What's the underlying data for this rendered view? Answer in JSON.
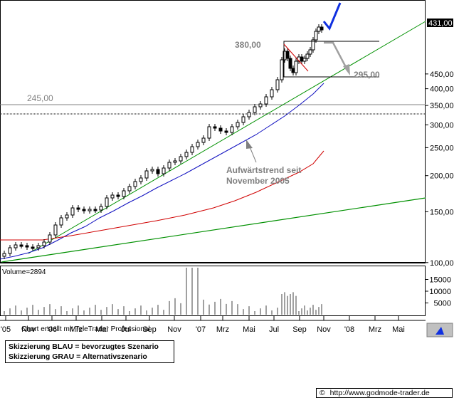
{
  "chart_data": {
    "type": "candlestick",
    "price_axis": {
      "ticks": [
        100,
        150,
        200,
        250,
        300,
        350,
        400,
        450
      ],
      "tick_labels": [
        "100,00",
        "150,00",
        "200,00",
        "250,00",
        "300,00",
        "350,00",
        "400,00",
        "450,00"
      ],
      "scale": "log",
      "current_price_label": "431,00"
    },
    "volume_axis": {
      "label": "Volume=2894",
      "ticks": [
        5000,
        10000,
        15000
      ],
      "tick_labels": [
        "5000",
        "10000",
        "15000"
      ],
      "max": 20000
    },
    "x_axis": {
      "tick_labels": [
        "'05",
        "Nov",
        "'06",
        "Mrz",
        "Mai",
        "Jul",
        "Sep",
        "Nov",
        "'07",
        "Mrz",
        "Mai",
        "Jul",
        "Sep",
        "Nov",
        "'08",
        "Mrz",
        "Mai"
      ]
    },
    "annotations": {
      "level_245": "245,00",
      "level_380": "380,00",
      "level_295": "295,00",
      "trend_label_line1": "Aufwärtstrend seit",
      "trend_label_line2": "November 2005"
    },
    "colors": {
      "candle": "#000000",
      "ma_blue": "#1010c0",
      "ma_red": "#d00000",
      "trend_green": "#009000",
      "scenario_blue": "#1030e0",
      "scenario_grey": "#a0a0a0"
    },
    "grid": false
  },
  "footer": {
    "credit": "Chart erstellt mit TeleTrader Professional",
    "legend_line1": "Skizzierung BLAU = bevorzugtes Szenario",
    "legend_line2": "Skizzierung GRAU = Alternativszenario",
    "copyright_symbol": "©",
    "source_url": "http://www.godmode-trader.de"
  }
}
